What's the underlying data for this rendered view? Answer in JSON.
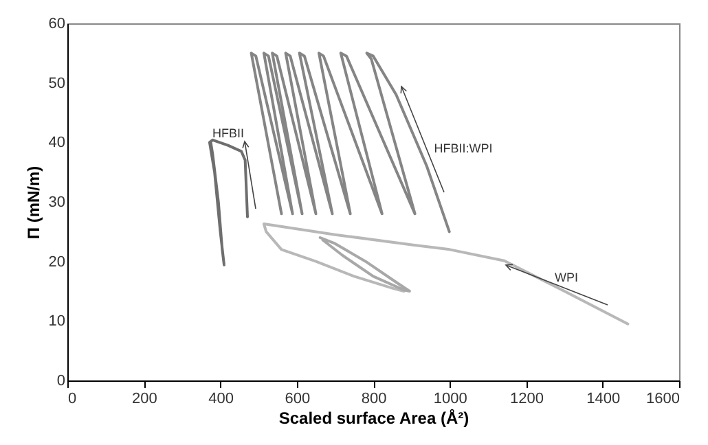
{
  "chart_data": {
    "type": "line",
    "xlabel": "Scaled surface Area (Å²)",
    "ylabel": "Π (mN/m)",
    "xlim": [
      0,
      1600
    ],
    "xticks": [
      0,
      200,
      400,
      600,
      800,
      1000,
      1200,
      1400,
      1600
    ],
    "ylim": [
      0,
      60
    ],
    "yticks": [
      0,
      10,
      20,
      30,
      40,
      50,
      60
    ],
    "grid": false,
    "marker": "none",
    "line_style": "solid",
    "series": [
      {
        "color": "#6e6e6e",
        "x": [
          471,
          465,
          455,
          420,
          380,
          372,
          385,
          400,
          410,
          405,
          395,
          380,
          375
        ],
        "values": [
          27.5,
          37,
          38.5,
          39.5,
          40.4,
          40,
          35,
          25,
          19.4,
          22,
          30,
          38,
          40
        ]
      },
      {
        "color": "#858585",
        "x": [
          999,
          940,
          860,
          800,
          783,
          795,
          909,
          730,
          715,
          823,
          670,
          658,
          740,
          620,
          607,
          693,
          583,
          571,
          650,
          548,
          536,
          614,
          526,
          514,
          589,
          493,
          481,
          560
        ],
        "values": [
          25,
          36,
          48,
          54.5,
          55,
          54,
          28,
          54.5,
          55,
          28,
          54.5,
          55,
          28,
          54.5,
          55,
          28,
          54.5,
          55,
          28,
          54.5,
          55,
          28,
          54.5,
          55,
          28,
          54.5,
          55,
          28
        ]
      },
      {
        "color": "#b8b8b8",
        "x": [
          1466,
          1300,
          1143,
          1000,
          901,
          700,
          514,
          520,
          560,
          650,
          750,
          850,
          880
        ],
        "values": [
          9.5,
          15,
          20.1,
          22,
          22.8,
          24.5,
          26.3,
          25,
          22,
          20,
          17.5,
          15.5,
          15
        ]
      },
      {
        "color": "#a8a8a8",
        "x": [
          661,
          700,
          780,
          860,
          895,
          880,
          800,
          720,
          668
        ],
        "values": [
          24,
          23,
          20,
          16.5,
          15,
          15.2,
          17.5,
          21,
          23.6
        ]
      }
    ],
    "annotations": [
      "HFBII",
      "HFBII:WPI",
      "WPI"
    ]
  }
}
